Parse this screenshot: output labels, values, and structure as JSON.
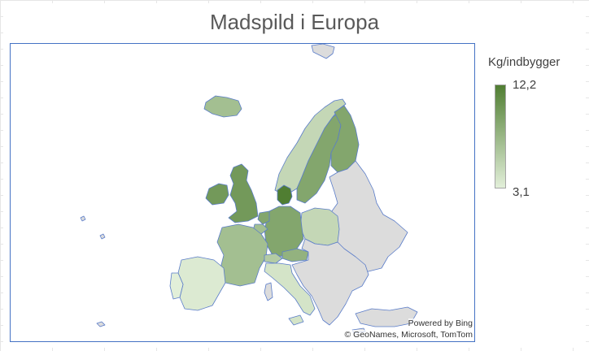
{
  "map": {
    "title": "Madspild i Europa",
    "attribution_line1": "Powered by Bing",
    "attribution_line2": "© GeoNames, Microsoft, TomTom",
    "no_data_color": "#dcdcdc",
    "border_color": "#5a7cc9"
  },
  "legend": {
    "title": "Kg/indbygger",
    "max_label": "12,2",
    "min_label": "3,1",
    "min_value": 3.1,
    "max_value": 12.2,
    "color_low": "#e2efd9",
    "color_high": "#507e32"
  },
  "chart_data": {
    "type": "heatmap",
    "title": "Madspild i Europa",
    "value_label": "Kg/indbygger",
    "range": [
      3.1,
      12.2
    ],
    "regions": [
      {
        "name": "Denmark",
        "value": 12.2
      },
      {
        "name": "Ireland",
        "value": 10
      },
      {
        "name": "United Kingdom",
        "value": 10
      },
      {
        "name": "Sweden",
        "value": 9
      },
      {
        "name": "Finland",
        "value": 9
      },
      {
        "name": "Netherlands",
        "value": 9
      },
      {
        "name": "Germany",
        "value": 9
      },
      {
        "name": "Iceland",
        "value": 7
      },
      {
        "name": "Austria",
        "value": 8
      },
      {
        "name": "France",
        "value": 7
      },
      {
        "name": "Belgium",
        "value": 7
      },
      {
        "name": "Switzerland",
        "value": 6
      },
      {
        "name": "Norway",
        "value": 5
      },
      {
        "name": "Poland",
        "value": 5
      },
      {
        "name": "Italy",
        "value": 4
      },
      {
        "name": "Spain",
        "value": 3.5
      },
      {
        "name": "Portugal",
        "value": 3.1
      }
    ]
  }
}
